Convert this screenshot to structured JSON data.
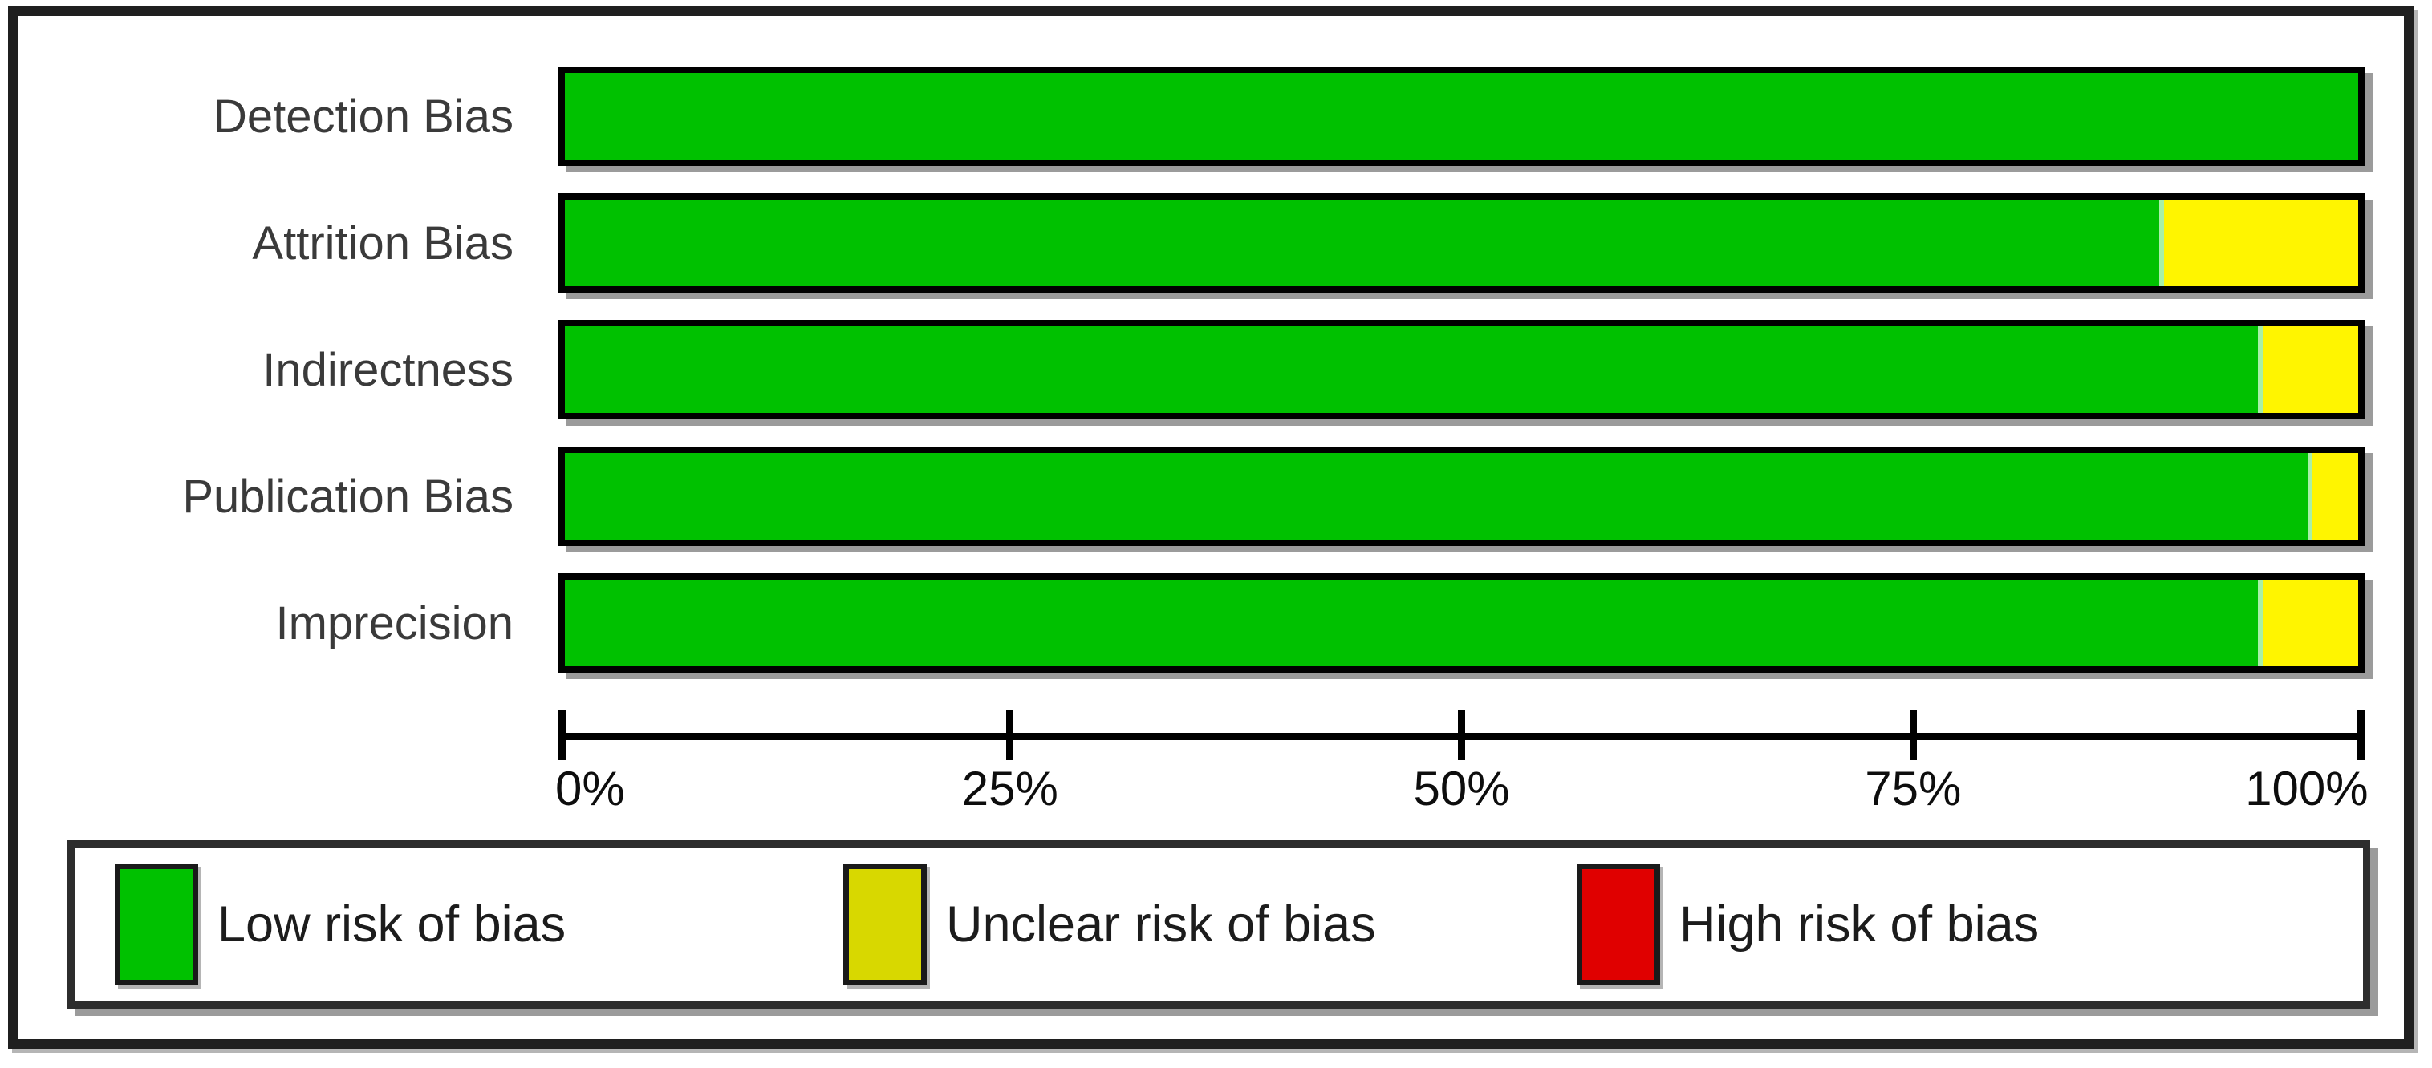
{
  "chart_data": {
    "type": "bar",
    "orientation": "horizontal",
    "stacked": true,
    "title": "",
    "xlabel": "",
    "ylabel": "",
    "categories": [
      "Detection Bias",
      "Attrition Bias",
      "Indirectness",
      "Publication Bias",
      "Imprecision"
    ],
    "series": [
      {
        "name": "Low risk of bias",
        "color": "#00C100",
        "values": [
          100,
          88.9,
          94.4,
          97.2,
          94.4
        ]
      },
      {
        "name": "Unclear risk of bias",
        "color": "#FFF500",
        "values": [
          0,
          11.1,
          5.6,
          2.8,
          5.6
        ]
      },
      {
        "name": "High risk of bias",
        "color": "#E00000",
        "values": [
          0,
          0,
          0,
          0,
          0
        ]
      }
    ],
    "xlim": [
      0,
      100
    ],
    "x_ticks": [
      "0%",
      "25%",
      "50%",
      "75%",
      "100%"
    ],
    "x_tick_values": [
      0,
      25,
      50,
      75,
      100
    ],
    "grid": false,
    "legend_position": "bottom"
  },
  "legend": {
    "items": [
      {
        "label": "Low risk of bias",
        "color": "#00C100"
      },
      {
        "label": "Unclear risk of bias",
        "color": "#D8D800"
      },
      {
        "label": "High risk of bias",
        "color": "#E00000"
      }
    ]
  }
}
